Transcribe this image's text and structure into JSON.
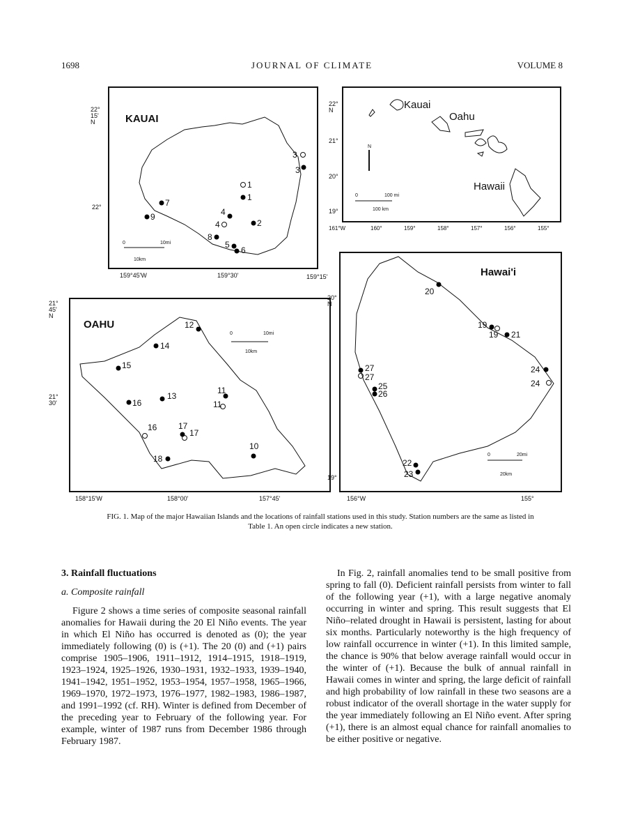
{
  "header": {
    "page_number": "1698",
    "journal": "JOURNAL OF CLIMATE",
    "volume": "VOLUME 8"
  },
  "figure": {
    "kauai": {
      "title": "KAUAI",
      "lat_top": "22°\n15'\nN",
      "lat_22": "22°",
      "lon": [
        "159°45'W",
        "159°30'",
        "159°15'"
      ],
      "scale_mi": "10mi",
      "scale_km": "10km",
      "zero": "0",
      "stations": [
        "3",
        "3",
        "1",
        "1",
        "7",
        "9",
        "4",
        "4",
        "2",
        "8",
        "5",
        "6"
      ]
    },
    "overview": {
      "labels": [
        "Kauai",
        "Oahu",
        "Hawaii"
      ],
      "lat": [
        "22°\nN",
        "21°",
        "20°",
        "19°"
      ],
      "lon": [
        "161°W",
        "160°",
        "159°",
        "158°",
        "157°",
        "156°",
        "155°"
      ],
      "scale_mi": "100 mi",
      "scale_km": "100 km",
      "zero": "0",
      "north": "N"
    },
    "oahu": {
      "title": "OAHU",
      "lat": [
        "21°\n45'\nN",
        "21°\n30'"
      ],
      "lon": [
        "158°15'W",
        "158°00'",
        "157°45'"
      ],
      "scale_mi": "10mi",
      "scale_km": "10km",
      "zero": "0",
      "stations": [
        "12",
        "14",
        "15",
        "13",
        "16",
        "11",
        "11",
        "16",
        "17",
        "17",
        "10",
        "18"
      ]
    },
    "hawaii": {
      "title": "Hawai'i",
      "lat": [
        "20°\nN",
        "19°"
      ],
      "lon": [
        "156°W",
        "155°"
      ],
      "scale_mi": "20mi",
      "scale_km": "20km",
      "zero": "0",
      "stations": [
        "20",
        "19",
        "19",
        "21",
        "27",
        "27",
        "25",
        "26",
        "24",
        "24",
        "22",
        "23"
      ]
    },
    "caption_label": "FIG. 1.",
    "caption": "Map of the major Hawaiian Islands and the locations of rainfall stations used in this study. Station numbers are the same as listed in Table 1. An open circle indicates a new station."
  },
  "section": {
    "heading": "3. Rainfall fluctuations",
    "subheading": "a. Composite rainfall",
    "left_paragraph": "Figure 2 shows a time series of composite seasonal rainfall anomalies for Hawaii during the 20 El Niño events. The year in which El Niño has occurred is denoted as (0); the year immediately following (0) is (+1). The 20 (0) and (+1) pairs comprise 1905–1906, 1911–1912, 1914–1915, 1918–1919, 1923–1924, 1925–1926, 1930–1931, 1932–1933, 1939–1940, 1941–1942, 1951–1952, 1953–1954, 1957–1958, 1965–1966, 1969–1970, 1972–1973, 1976–1977, 1982–1983, 1986–1987, and 1991–1992 (cf. RH). Winter is defined from December of the preceding year to February of the following year. For example, winter of 1987 runs from December 1986 through February 1987.",
    "right_paragraph": "In Fig. 2, rainfall anomalies tend to be small positive from spring to fall (0). Deficient rainfall persists from winter to fall of the following year (+1), with a large negative anomaly occurring in winter and spring. This result suggests that El Niño–related drought in Hawaii is persistent, lasting for about six months. Particularly noteworthy is the high frequency of low rainfall occurrence in winter (+1). In this limited sample, the chance is 90% that below average rainfall would occur in the winter of (+1). Because the bulk of annual rainfall in Hawaii comes in winter and spring, the large deficit of rainfall and high probability of low rainfall in these two seasons are a robust indicator of the overall shortage in the water supply for the year immediately following an El Niño event. After spring (+1), there is an almost equal chance for rainfall anomalies to be either positive or negative."
  }
}
